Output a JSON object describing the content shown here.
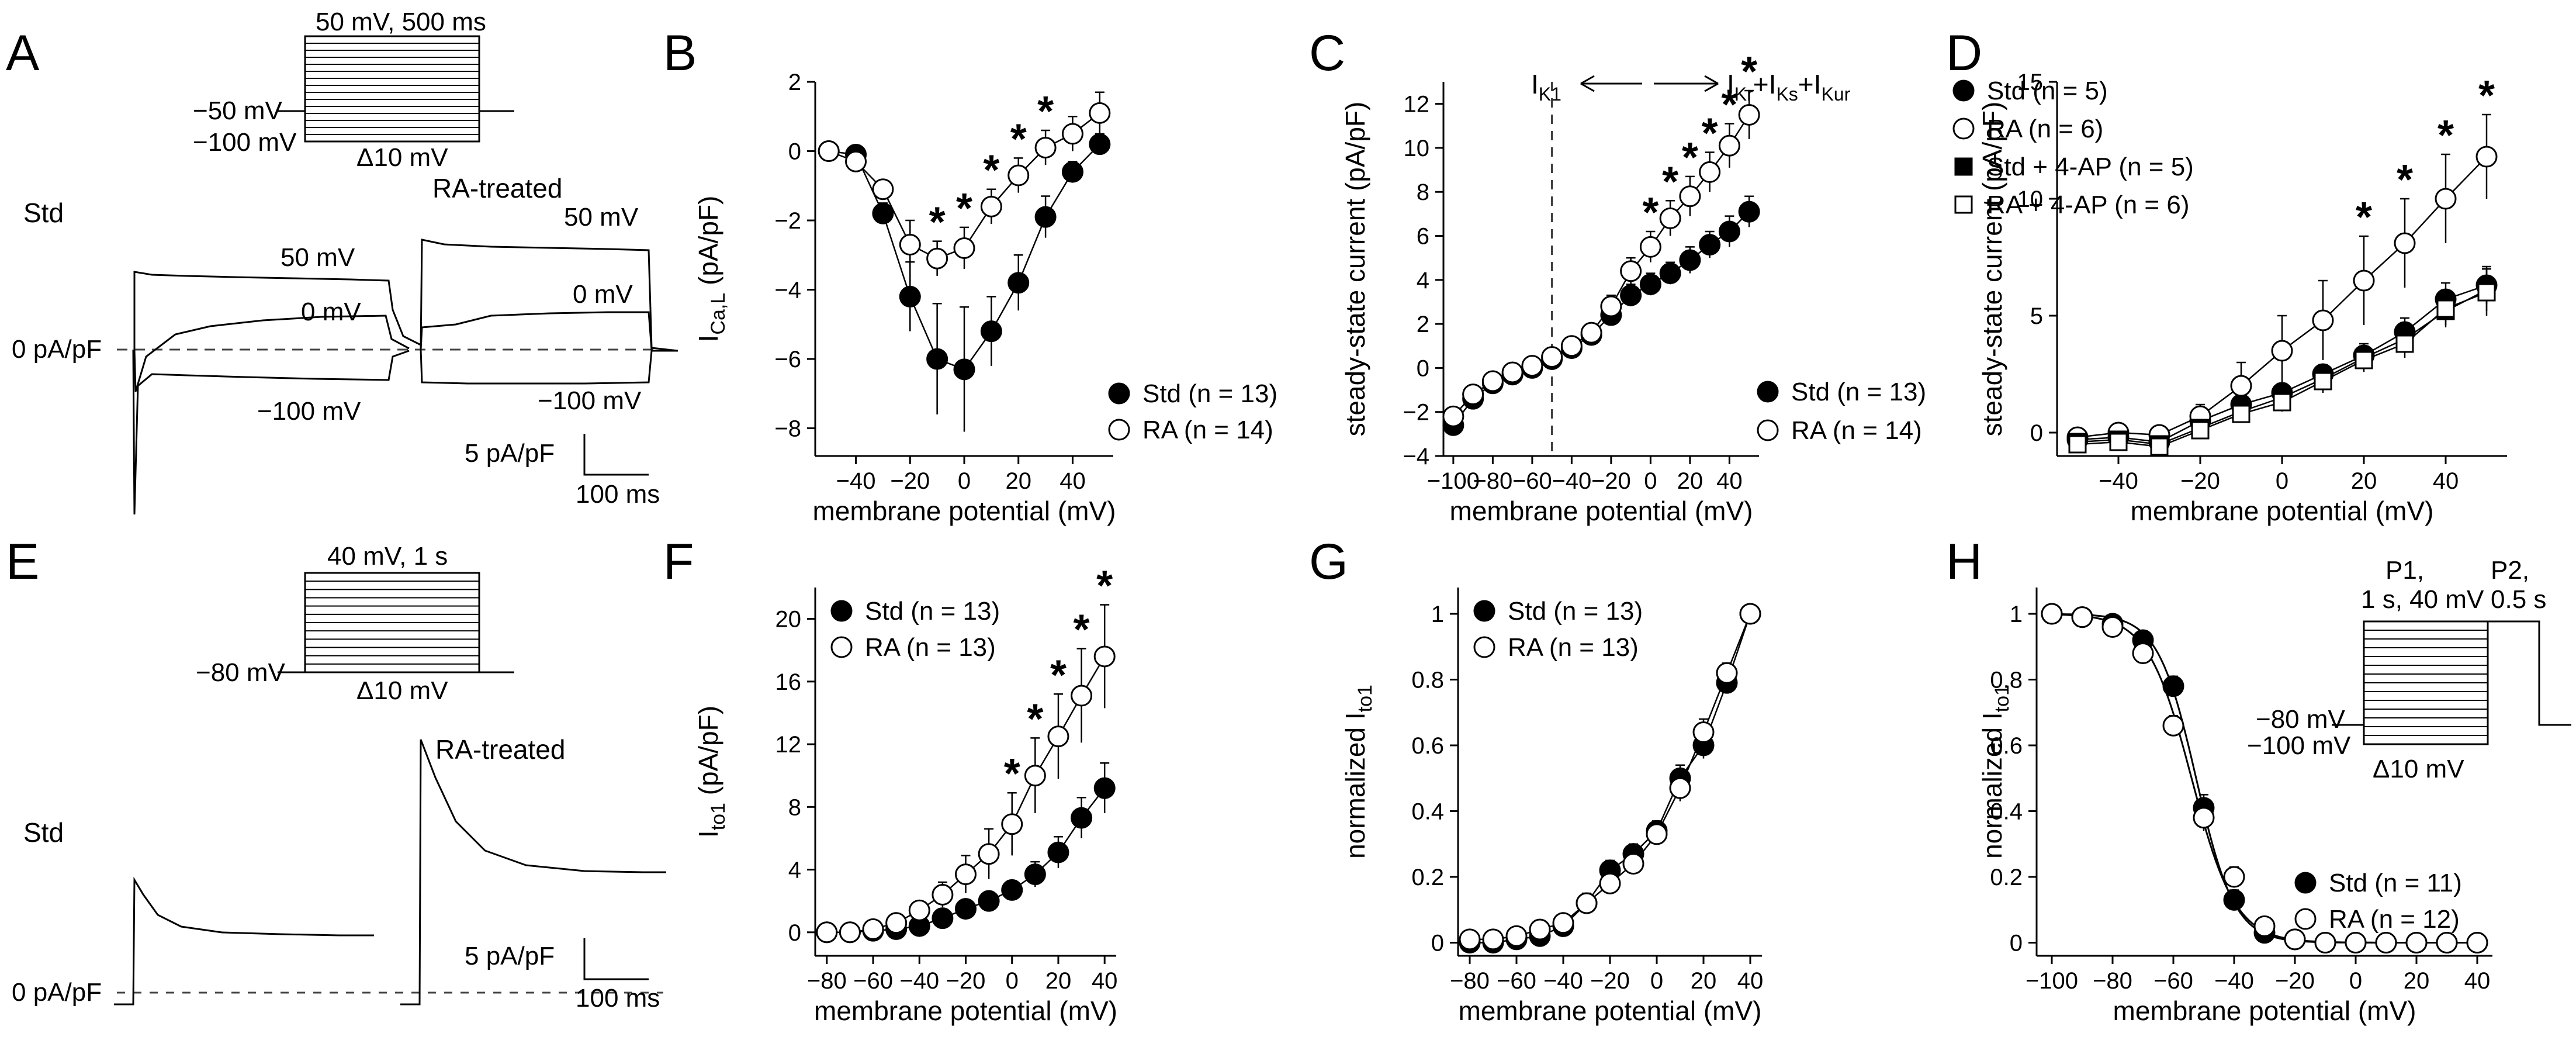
{
  "panel_letters": [
    "A",
    "B",
    "C",
    "D",
    "E",
    "F",
    "G",
    "H"
  ],
  "panel_A": {
    "protocol_top": "50 mV, 500 ms",
    "hold_label": "−50 mV",
    "pre_label": "−100 mV",
    "step_label": "Δ10 mV",
    "std_title": "Std",
    "ra_title": "RA-treated",
    "std_lbl_50": "50 mV",
    "std_lbl_0": "0 mV",
    "std_lbl_m100": "−100 mV",
    "ra_lbl_50": "50 mV",
    "ra_lbl_0": "0 mV",
    "ra_lbl_m100": "−100 mV",
    "zero_label": "0 pA/pF",
    "scale_y": "5 pA/pF",
    "scale_x": "100 ms"
  },
  "panel_E": {
    "protocol_top": "40 mV, 1 s",
    "hold_label": "−80 mV",
    "step_label": "Δ10 mV",
    "std_title": "Std",
    "ra_title": "RA-treated",
    "zero_label": "0 pA/pF",
    "scale_y": "5 pA/pF",
    "scale_x": "100 ms"
  },
  "panel_C_notes": {
    "ik1": "I",
    "ik1_sub": "K1",
    "right_parts": [
      [
        "I",
        ""
      ],
      [
        "Kr",
        "sub"
      ],
      [
        "+I",
        ""
      ],
      [
        "Ks",
        "sub"
      ],
      [
        "+I",
        ""
      ],
      [
        "Kur",
        "sub"
      ]
    ]
  },
  "panel_H_inset": {
    "p1_line1": "P1,",
    "p1_line2": "1 s, 40 mV",
    "p2_line1": "P2,",
    "p2_line2": "0.5 s",
    "v1": "−80 mV",
    "v2": "−100 mV",
    "step": "Δ10 mV"
  },
  "chart_data": [
    {
      "panel": "B",
      "type": "scatter",
      "xlabel": "membrane potential (mV)",
      "ylabel_parts": [
        [
          "I",
          ""
        ],
        [
          "Ca,L",
          "sub"
        ],
        [
          " (pA/pF)",
          ""
        ]
      ],
      "xlim": [
        -55,
        55
      ],
      "ylim": [
        -8.8,
        2
      ],
      "xticks": [
        -40,
        -20,
        0,
        20,
        40
      ],
      "yticks": [
        -8,
        -6,
        -4,
        -2,
        0,
        2
      ],
      "legend_pos": "bottom-right",
      "stars": [
        -10,
        0,
        10,
        20,
        30
      ],
      "series": [
        {
          "name": "Std (n = 13)",
          "marker": "filled-circle",
          "x": [
            -50,
            -40,
            -30,
            -20,
            -10,
            0,
            10,
            20,
            30,
            40,
            50
          ],
          "y": [
            0,
            -0.1,
            -1.8,
            -4.2,
            -6.0,
            -6.3,
            -5.2,
            -3.8,
            -1.9,
            -0.6,
            0.2
          ],
          "err": [
            0,
            0.1,
            0.3,
            1.0,
            1.6,
            1.8,
            1.0,
            0.8,
            0.6,
            0.3,
            0.3
          ]
        },
        {
          "name": "RA (n = 14)",
          "marker": "open-circle",
          "x": [
            -50,
            -40,
            -30,
            -20,
            -10,
            0,
            10,
            20,
            30,
            40,
            50
          ],
          "y": [
            0,
            -0.3,
            -1.1,
            -2.7,
            -3.1,
            -2.8,
            -1.6,
            -0.7,
            0.1,
            0.5,
            1.1
          ],
          "err": [
            0,
            0.1,
            0.2,
            0.7,
            0.5,
            0.6,
            0.5,
            0.5,
            0.5,
            0.5,
            0.6
          ]
        }
      ]
    },
    {
      "panel": "C",
      "type": "scatter",
      "xlabel": "membrane potential (mV)",
      "ylabel": "steady-state current (pA/pF)",
      "xlim": [
        -105,
        55
      ],
      "ylim": [
        -4,
        13
      ],
      "xticks": [
        -100,
        -80,
        -60,
        -40,
        -20,
        0,
        20,
        40
      ],
      "yticks": [
        -4,
        -2,
        0,
        2,
        4,
        6,
        8,
        10,
        12
      ],
      "legend_pos": "bottom-right",
      "vline": -50,
      "stars": [
        0,
        10,
        20,
        30,
        40,
        50
      ],
      "series": [
        {
          "name": "Std (n = 13)",
          "marker": "filled-circle",
          "x": [
            -100,
            -90,
            -80,
            -70,
            -60,
            -50,
            -40,
            -30,
            -20,
            -10,
            0,
            10,
            20,
            30,
            40,
            50
          ],
          "y": [
            -2.6,
            -1.4,
            -0.7,
            -0.3,
            0,
            0.4,
            0.9,
            1.5,
            2.4,
            3.3,
            3.8,
            4.3,
            4.9,
            5.6,
            6.2,
            7.1
          ],
          "err": [
            0.3,
            0.2,
            0.2,
            0.1,
            0.1,
            0.1,
            0.2,
            0.3,
            0.4,
            0.5,
            0.5,
            0.5,
            0.6,
            0.6,
            0.7,
            0.7
          ]
        },
        {
          "name": "RA (n = 14)",
          "marker": "open-circle",
          "x": [
            -100,
            -90,
            -80,
            -70,
            -60,
            -50,
            -40,
            -30,
            -20,
            -10,
            0,
            10,
            20,
            30,
            40,
            50
          ],
          "y": [
            -2.2,
            -1.2,
            -0.6,
            -0.2,
            0.1,
            0.5,
            1.0,
            1.6,
            2.8,
            4.4,
            5.5,
            6.8,
            7.8,
            8.9,
            10.1,
            11.5
          ],
          "err": [
            0.3,
            0.2,
            0.2,
            0.1,
            0.1,
            0.1,
            0.2,
            0.3,
            0.5,
            0.6,
            0.7,
            0.8,
            0.9,
            0.9,
            1.0,
            1.1
          ]
        }
      ]
    },
    {
      "panel": "D",
      "type": "scatter",
      "xlabel": "membrane potential (mV)",
      "ylabel": "steady-state current (pA/pF)",
      "xlim": [
        -55,
        55
      ],
      "ylim": [
        -1,
        15
      ],
      "xticks": [
        -40,
        -20,
        0,
        20,
        40
      ],
      "yticks": [
        0,
        5,
        10,
        15
      ],
      "legend_pos": "top-left",
      "stars": [
        20,
        30,
        40,
        50
      ],
      "series": [
        {
          "name": "Std (n = 5)",
          "marker": "filled-circle",
          "x": [
            -50,
            -40,
            -30,
            -20,
            -10,
            0,
            10,
            20,
            30,
            40,
            50
          ],
          "y": [
            -0.3,
            -0.2,
            -0.4,
            0.5,
            1.2,
            1.7,
            2.5,
            3.3,
            4.3,
            5.7,
            6.3
          ],
          "err": [
            0.1,
            0.2,
            0.2,
            0.3,
            0.3,
            0.4,
            0.4,
            0.5,
            0.6,
            0.7,
            0.8
          ]
        },
        {
          "name": "RA (n = 6)",
          "marker": "open-circle",
          "x": [
            -50,
            -40,
            -30,
            -20,
            -10,
            0,
            10,
            20,
            30,
            40,
            50
          ],
          "y": [
            -0.2,
            0,
            -0.1,
            0.7,
            2.0,
            3.5,
            4.8,
            6.5,
            8.1,
            10.0,
            11.8
          ],
          "err": [
            0.2,
            0.3,
            0.3,
            0.5,
            1.0,
            1.5,
            1.7,
            1.9,
            1.9,
            1.9,
            1.8
          ]
        },
        {
          "name": "Std + 4-AP (n = 5)",
          "marker": "filled-square",
          "x": [
            -50,
            -40,
            -30,
            -20,
            -10,
            0,
            10,
            20,
            30,
            40,
            50
          ],
          "y": [
            -0.4,
            -0.3,
            -0.5,
            0.2,
            0.9,
            1.5,
            2.3,
            3.2,
            4.0,
            5.2,
            6.1
          ],
          "err": [
            0.1,
            0.2,
            0.2,
            0.3,
            0.3,
            0.4,
            0.5,
            0.5,
            0.6,
            0.7,
            0.9
          ]
        },
        {
          "name": "RA + 4-AP (n = 6)",
          "marker": "open-square",
          "x": [
            -50,
            -40,
            -30,
            -20,
            -10,
            0,
            10,
            20,
            30,
            40,
            50
          ],
          "y": [
            -0.5,
            -0.4,
            -0.6,
            0.1,
            0.8,
            1.3,
            2.2,
            3.1,
            3.8,
            5.3,
            6.0
          ],
          "err": [
            0.1,
            0.2,
            0.2,
            0.3,
            0.3,
            0.4,
            0.5,
            0.5,
            0.6,
            0.7,
            1.0
          ]
        }
      ]
    },
    {
      "panel": "F",
      "type": "scatter",
      "xlabel": "membrane potential (mV)",
      "ylabel_parts": [
        [
          "I",
          ""
        ],
        [
          "to1",
          "sub"
        ],
        [
          " (pA/pF)",
          ""
        ]
      ],
      "xlim": [
        -85,
        45
      ],
      "ylim": [
        -1.5,
        22
      ],
      "xticks": [
        -80,
        -60,
        -40,
        -20,
        0,
        20,
        40
      ],
      "yticks": [
        0,
        4,
        8,
        12,
        16,
        20
      ],
      "legend_pos": "top-left",
      "stars": [
        0,
        10,
        20,
        30,
        40
      ],
      "series": [
        {
          "name": "Std (n = 13)",
          "marker": "filled-circle",
          "x": [
            -80,
            -70,
            -60,
            -50,
            -40,
            -30,
            -20,
            -10,
            0,
            10,
            20,
            30,
            40
          ],
          "y": [
            0,
            0,
            0.1,
            0.2,
            0.4,
            0.9,
            1.5,
            2.0,
            2.7,
            3.7,
            5.1,
            7.3,
            9.2
          ],
          "err": [
            0,
            0,
            0.1,
            0.1,
            0.2,
            0.3,
            0.4,
            0.5,
            0.6,
            0.8,
            1.0,
            1.3,
            1.6
          ]
        },
        {
          "name": "RA (n = 13)",
          "marker": "open-circle",
          "x": [
            -80,
            -70,
            -60,
            -50,
            -40,
            -30,
            -20,
            -10,
            0,
            10,
            20,
            30,
            40
          ],
          "y": [
            0,
            0,
            0.2,
            0.6,
            1.4,
            2.4,
            3.7,
            5.0,
            6.9,
            10.0,
            12.5,
            15.1,
            17.6
          ],
          "err": [
            0,
            0.1,
            0.1,
            0.3,
            0.5,
            0.8,
            1.2,
            1.6,
            2.0,
            2.4,
            2.7,
            3.0,
            3.3
          ]
        }
      ]
    },
    {
      "panel": "G",
      "type": "scatter",
      "xlabel": "membrane potential (mV)",
      "ylabel_parts": [
        [
          "normalized I",
          ""
        ],
        [
          "to1",
          "sub"
        ]
      ],
      "xlim": [
        -85,
        45
      ],
      "ylim": [
        -0.04,
        1.08
      ],
      "xticks": [
        -80,
        -60,
        -40,
        -20,
        0,
        20,
        40
      ],
      "yticks": [
        0,
        0.2,
        0.4,
        0.6,
        0.8,
        1
      ],
      "legend_pos": "top-left",
      "stars": [],
      "series": [
        {
          "name": "Std (n = 13)",
          "marker": "filled-circle",
          "x": [
            -80,
            -70,
            -60,
            -50,
            -40,
            -30,
            -20,
            -10,
            0,
            10,
            20,
            30,
            40
          ],
          "y": [
            0,
            0,
            0.01,
            0.02,
            0.05,
            0.12,
            0.22,
            0.27,
            0.34,
            0.5,
            0.6,
            0.79,
            1.0
          ],
          "err": [
            0.01,
            0.01,
            0.01,
            0.02,
            0.02,
            0.03,
            0.03,
            0.03,
            0.03,
            0.04,
            0.04,
            0.03,
            0
          ]
        },
        {
          "name": "RA (n = 13)",
          "marker": "open-circle",
          "x": [
            -80,
            -70,
            -60,
            -50,
            -40,
            -30,
            -20,
            -10,
            0,
            10,
            20,
            30,
            40
          ],
          "y": [
            0.01,
            0.01,
            0.02,
            0.04,
            0.06,
            0.12,
            0.18,
            0.24,
            0.33,
            0.47,
            0.64,
            0.82,
            1.0
          ],
          "err": [
            0.01,
            0.01,
            0.01,
            0.02,
            0.02,
            0.03,
            0.03,
            0.03,
            0.03,
            0.04,
            0.04,
            0.03,
            0
          ]
        }
      ]
    },
    {
      "panel": "H",
      "type": "scatter",
      "xlabel": "membrane potential (mV)",
      "ylabel_parts": [
        [
          "normalized I",
          ""
        ],
        [
          "to1",
          "sub"
        ]
      ],
      "xlim": [
        -105,
        45
      ],
      "ylim": [
        -0.04,
        1.08
      ],
      "xticks": [
        -100,
        -80,
        -60,
        -40,
        -20,
        0,
        20,
        40
      ],
      "yticks": [
        0,
        0.2,
        0.4,
        0.6,
        0.8,
        1
      ],
      "legend_pos": "bottom-right",
      "stars": [],
      "fit_curve": "boltzmann",
      "series": [
        {
          "name": "Std (n = 11)",
          "marker": "filled-circle",
          "x": [
            -100,
            -90,
            -80,
            -70,
            -60,
            -50,
            -40,
            -30,
            -20,
            -10,
            0,
            10,
            20,
            30,
            40
          ],
          "y": [
            1.0,
            0.99,
            0.97,
            0.92,
            0.78,
            0.41,
            0.13,
            0.03,
            0.01,
            0,
            0,
            0,
            0,
            0,
            0
          ],
          "err": [
            0,
            0,
            0.01,
            0.02,
            0.03,
            0.04,
            0.03,
            0.01,
            0,
            0,
            0,
            0,
            0,
            0,
            0
          ]
        },
        {
          "name": "RA (n = 12)",
          "marker": "open-circle",
          "x": [
            -100,
            -90,
            -80,
            -70,
            -60,
            -50,
            -40,
            -30,
            -20,
            -10,
            0,
            10,
            20,
            30,
            40
          ],
          "y": [
            1.0,
            0.99,
            0.96,
            0.88,
            0.66,
            0.38,
            0.2,
            0.05,
            0.01,
            0,
            0,
            0,
            0,
            0,
            0
          ],
          "err": [
            0,
            0,
            0.01,
            0.02,
            0.03,
            0.04,
            0.03,
            0.01,
            0,
            0,
            0,
            0,
            0,
            0,
            0
          ]
        }
      ]
    }
  ]
}
